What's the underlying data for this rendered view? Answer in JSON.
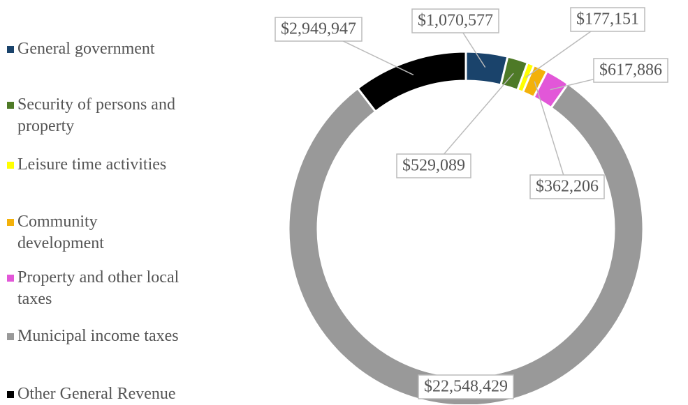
{
  "chart_data": {
    "type": "donut",
    "categories": [
      "General government",
      "Security of persons and property",
      "Leisure time activities",
      "Community development",
      "Property and other local taxes",
      "Municipal income taxes",
      "Other General Revenue"
    ],
    "values": [
      1070577,
      529089,
      177151,
      362206,
      617886,
      22548429,
      2949947
    ],
    "value_labels": [
      "$1,070,577",
      "$529,089",
      "$177,151",
      "$362,206",
      "$617,886",
      "$22,548,429",
      "$2,949,947"
    ],
    "colors": [
      "#1a436b",
      "#4e7a27",
      "#ffff00",
      "#f3b10a",
      "#e257d8",
      "#999999",
      "#000000"
    ]
  }
}
